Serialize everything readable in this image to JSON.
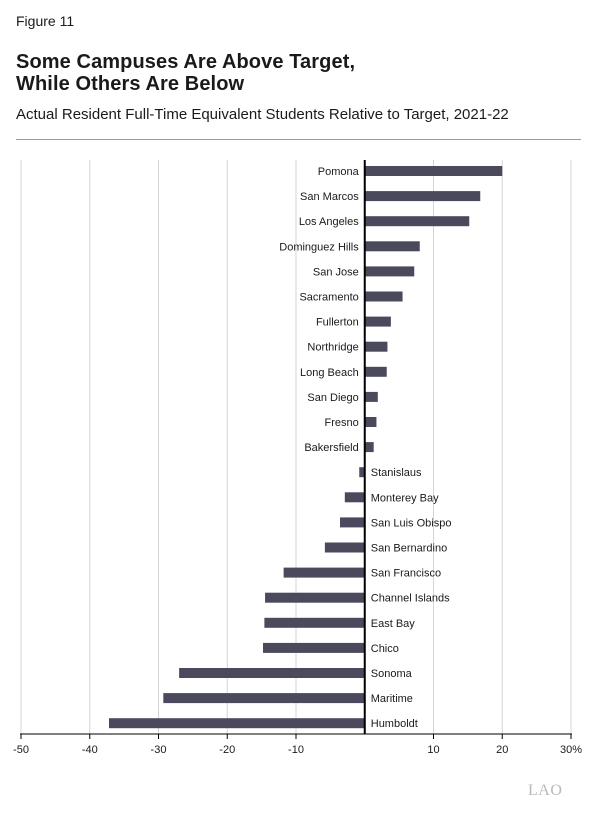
{
  "figure_label": "Figure 11",
  "title_line1": "Some Campuses Are Above Target,",
  "title_line2": "While Others Are Below",
  "subtitle": "Actual Resident Full-Time Equivalent Students Relative to Target, 2021-22",
  "logo": "LAO",
  "colors": {
    "bar": "#4b4a5c",
    "grid": "#d4d4d4",
    "axis": "#000000",
    "rule": "#9a9a9a"
  },
  "chart_data": {
    "type": "bar",
    "orientation": "horizontal",
    "grid": true,
    "xlim": [
      -50,
      30
    ],
    "x_ticks": [
      -50,
      -40,
      -30,
      -20,
      -10,
      10,
      20,
      30
    ],
    "x_tick_labels": [
      "-50",
      "-40",
      "-30",
      "-20",
      "-10",
      "10",
      "20",
      "30%"
    ],
    "categories": [
      "Pomona",
      "San Marcos",
      "Los Angeles",
      "Dominguez Hills",
      "San Jose",
      "Sacramento",
      "Fullerton",
      "Northridge",
      "Long Beach",
      "San Diego",
      "Fresno",
      "Bakersfield",
      "Stanislaus",
      "Monterey Bay",
      "San Luis Obispo",
      "San Bernardino",
      "San Francisco",
      "Channel Islands",
      "East Bay",
      "Chico",
      "Sonoma",
      "Maritime",
      "Humboldt"
    ],
    "values": [
      20,
      16.8,
      15.2,
      8,
      7.2,
      5.5,
      3.8,
      3.3,
      3.2,
      1.9,
      1.7,
      1.3,
      -0.8,
      -2.9,
      -3.6,
      -5.8,
      -11.8,
      -14.5,
      -14.6,
      -14.8,
      -27,
      -29.3,
      -37.2
    ]
  }
}
